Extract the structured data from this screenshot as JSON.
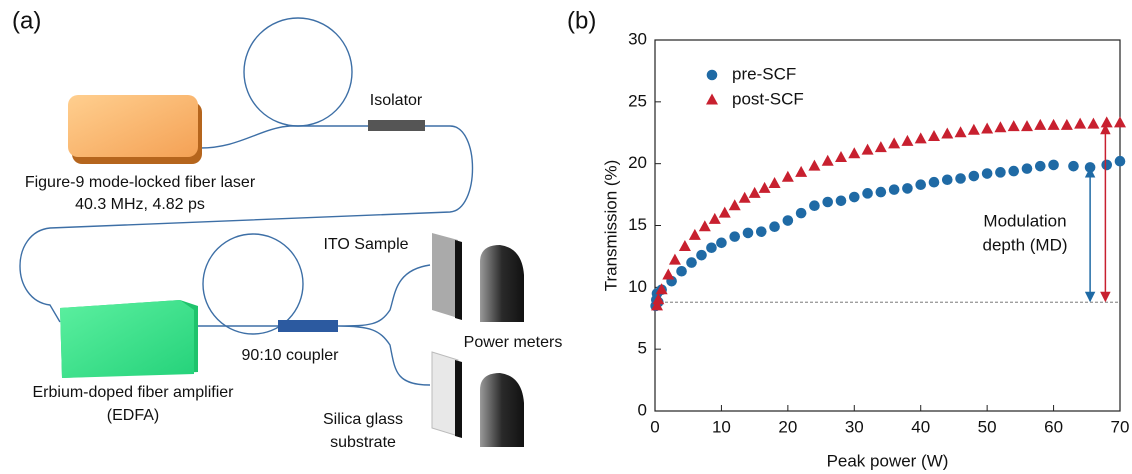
{
  "panel_a": {
    "label": "(a)",
    "isolator": "Isolator",
    "laser": [
      "Figure-9 mode-locked fiber laser",
      "40.3 MHz, 4.82 ps"
    ],
    "ito_sample": "ITO Sample",
    "power_meters": "Power meters",
    "coupler": "90:10 coupler",
    "edfa": [
      "Erbium-doped fiber amplifier",
      "(EDFA)"
    ],
    "silica": [
      "Silica glass",
      "substrate"
    ]
  },
  "chart_data": {
    "type": "scatter",
    "panel_label": "(b)",
    "x_label": "Peak power (W)",
    "y_label": "Transmission (%)",
    "xlim": [
      0,
      70
    ],
    "ylim": [
      0,
      30
    ],
    "xticks": [
      0,
      10,
      20,
      30,
      40,
      50,
      60,
      70
    ],
    "yticks": [
      0,
      5,
      10,
      15,
      20,
      25,
      30
    ],
    "legend": "upper left",
    "series": [
      {
        "name": "pre-SCF",
        "color": "#1f6aa5",
        "marker": "circle",
        "x": [
          0.1,
          0.2,
          0.3,
          0.5,
          1,
          2.5,
          4,
          5.5,
          7,
          8.5,
          10,
          12,
          14,
          16,
          18,
          20,
          22,
          24,
          26,
          28,
          30,
          32,
          34,
          36,
          38,
          40,
          42,
          44,
          46,
          48,
          50,
          52,
          54,
          56,
          58,
          60,
          63,
          65.5,
          68,
          70
        ],
        "values": [
          8.5,
          9,
          9.5,
          8.8,
          9.8,
          10.5,
          11.3,
          12.0,
          12.6,
          13.2,
          13.6,
          14.1,
          14.4,
          14.5,
          14.9,
          15.4,
          16.0,
          16.6,
          16.9,
          17.0,
          17.3,
          17.6,
          17.7,
          17.9,
          18.0,
          18.3,
          18.5,
          18.7,
          18.8,
          19.0,
          19.2,
          19.3,
          19.4,
          19.6,
          19.8,
          19.9,
          19.8,
          19.7,
          19.9,
          20.2
        ]
      },
      {
        "name": "post-SCF",
        "color": "#c8202f",
        "marker": "triangle",
        "x": [
          0.3,
          0.5,
          1,
          2,
          3,
          4.5,
          6,
          7.5,
          9,
          10.5,
          12,
          13.5,
          15,
          16.5,
          18,
          20,
          22,
          24,
          26,
          28,
          30,
          32,
          34,
          36,
          38,
          40,
          42,
          44,
          46,
          48,
          50,
          52,
          54,
          56,
          58,
          60,
          62,
          64,
          66,
          68,
          70
        ],
        "values": [
          8.5,
          9,
          9.8,
          11.0,
          12.2,
          13.3,
          14.2,
          14.9,
          15.5,
          16.0,
          16.6,
          17.2,
          17.6,
          18.0,
          18.4,
          18.9,
          19.3,
          19.8,
          20.2,
          20.5,
          20.8,
          21.1,
          21.3,
          21.6,
          21.8,
          22.0,
          22.2,
          22.4,
          22.5,
          22.7,
          22.8,
          22.9,
          23.0,
          23.0,
          23.1,
          23.1,
          23.1,
          23.2,
          23.2,
          23.3,
          23.3
        ]
      }
    ],
    "reference_line": 8.8,
    "arrows": [
      {
        "x": 65.5,
        "y": [
          8.8,
          19.8
        ],
        "color": "#1f6aa5"
      },
      {
        "x": 67.8,
        "y": [
          8.8,
          23.3
        ],
        "color": "#c8202f"
      }
    ],
    "annotation": [
      "Modulation",
      "depth (MD)"
    ]
  }
}
